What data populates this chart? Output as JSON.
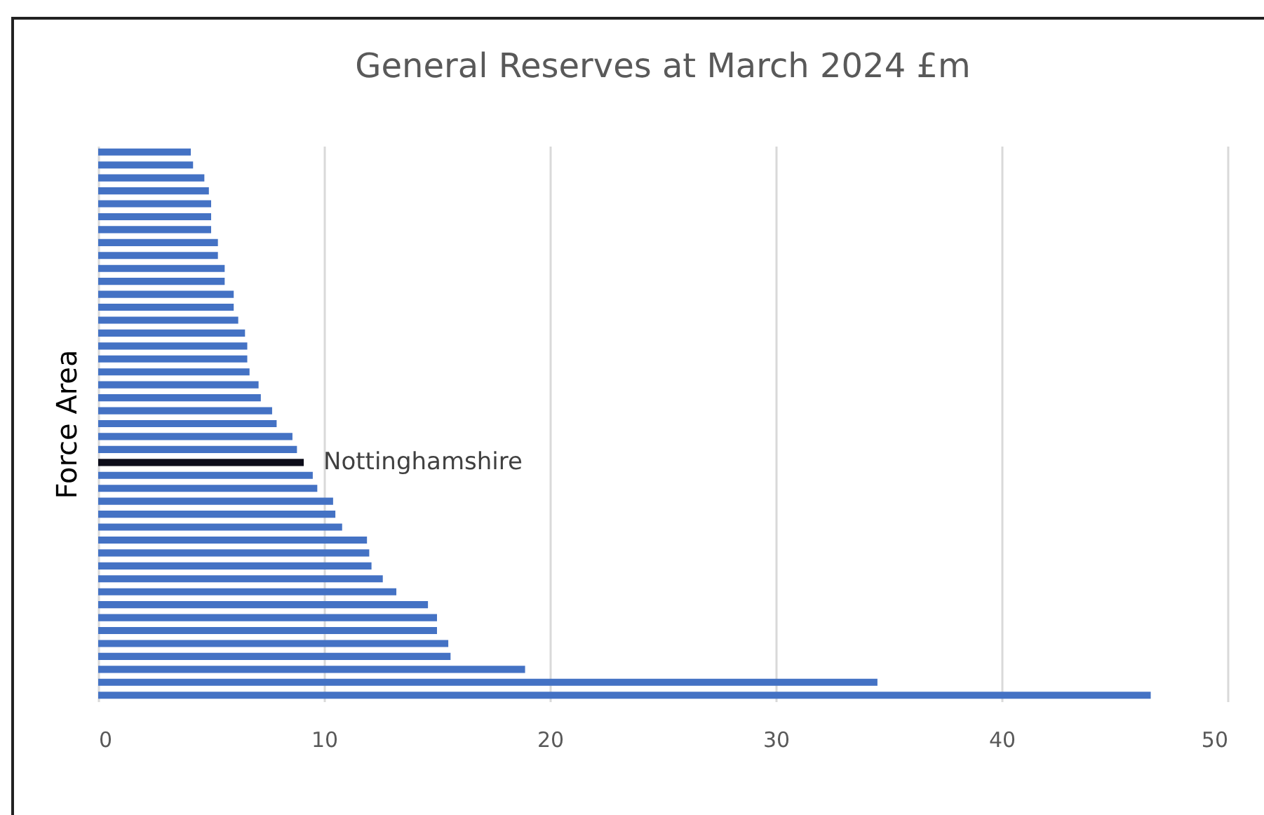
{
  "chart_data": {
    "type": "bar",
    "orientation": "horizontal",
    "title": "General Reserves at March 2024 £m",
    "ylabel": "Force Area",
    "categories": [
      null,
      null,
      null,
      null,
      null,
      null,
      null,
      null,
      null,
      null,
      null,
      null,
      null,
      null,
      null,
      null,
      null,
      null,
      null,
      null,
      null,
      null,
      null,
      null,
      "Nottinghamshire",
      null,
      null,
      null,
      null,
      null,
      null,
      null,
      null,
      null,
      null,
      null,
      null,
      null,
      null,
      null,
      null,
      null,
      null
    ],
    "values": [
      4.1,
      4.2,
      4.7,
      4.9,
      5.0,
      5.0,
      5.0,
      5.3,
      5.3,
      5.6,
      5.6,
      6.0,
      6.0,
      6.2,
      6.5,
      6.6,
      6.6,
      6.7,
      7.1,
      7.2,
      7.7,
      7.9,
      8.6,
      8.8,
      9.1,
      9.5,
      9.7,
      10.4,
      10.5,
      10.8,
      11.9,
      12.0,
      12.1,
      12.6,
      13.2,
      14.6,
      15.0,
      15.0,
      15.5,
      15.6,
      18.9,
      34.5,
      46.6
    ],
    "colors": [
      "#4472c4",
      "#4472c4",
      "#4472c4",
      "#4472c4",
      "#4472c4",
      "#4472c4",
      "#4472c4",
      "#4472c4",
      "#4472c4",
      "#4472c4",
      "#4472c4",
      "#4472c4",
      "#4472c4",
      "#4472c4",
      "#4472c4",
      "#4472c4",
      "#4472c4",
      "#4472c4",
      "#4472c4",
      "#4472c4",
      "#4472c4",
      "#4472c4",
      "#4472c4",
      "#4472c4",
      "#0d0d1a",
      "#4472c4",
      "#4472c4",
      "#4472c4",
      "#4472c4",
      "#4472c4",
      "#4472c4",
      "#4472c4",
      "#4472c4",
      "#4472c4",
      "#4472c4",
      "#4472c4",
      "#4472c4",
      "#4472c4",
      "#4472c4",
      "#4472c4",
      "#4472c4",
      "#4472c4",
      "#4472c4"
    ],
    "xlim": [
      0,
      50
    ],
    "xticks": [
      0,
      10,
      20,
      30,
      40,
      50
    ],
    "grid": "x",
    "legend": false
  }
}
